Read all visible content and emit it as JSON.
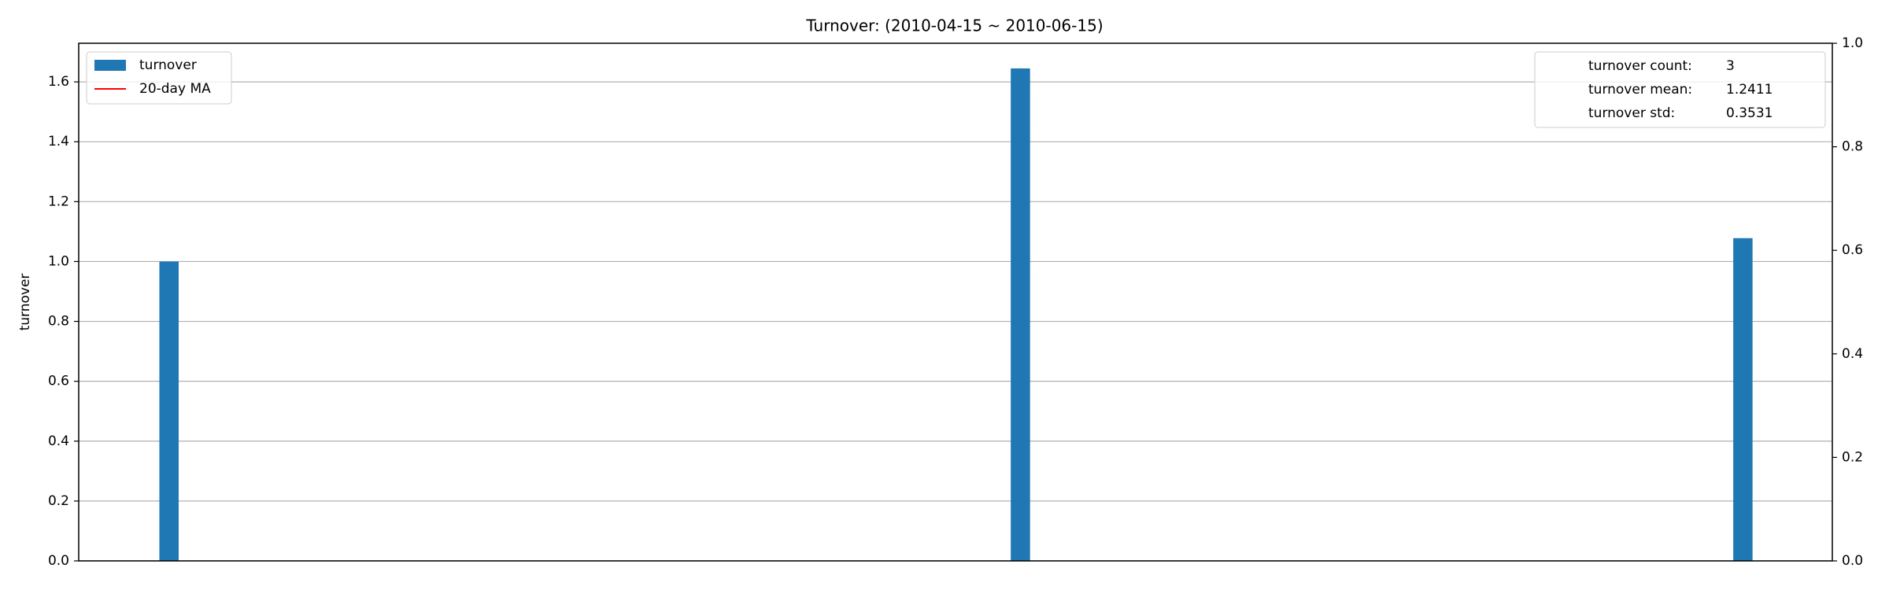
{
  "chart_data": {
    "type": "bar",
    "title": "Turnover: (2010-04-15 ~ 2010-06-15)",
    "y_label": "turnover",
    "categories": [
      null,
      null,
      null
    ],
    "series": [
      {
        "name": "turnover",
        "color": "#1f77b4",
        "values": [
          1.0,
          1.645,
          1.078
        ]
      },
      {
        "name": "20-day MA",
        "color": "#ff0000",
        "values": [
          null,
          null,
          null
        ]
      }
    ],
    "ylim": [
      0,
      1.729
    ],
    "yticks": [
      {
        "value": 0,
        "label": "0.0"
      },
      {
        "value": 0.2,
        "label": "0.2"
      },
      {
        "value": 0.4,
        "label": "0.4"
      },
      {
        "value": 0.6,
        "label": "0.6"
      },
      {
        "value": 0.8,
        "label": "0.8"
      },
      {
        "value": 1.0,
        "label": "1.0"
      },
      {
        "value": 1.2,
        "label": "1.2"
      },
      {
        "value": 1.4,
        "label": "1.4"
      },
      {
        "value": 1.6,
        "label": "1.6"
      }
    ],
    "y2lim": [
      0,
      1
    ],
    "y2ticks": [
      {
        "value": 0,
        "label": "0.0"
      },
      {
        "value": 0.2,
        "label": "0.2"
      },
      {
        "value": 0.4,
        "label": "0.4"
      },
      {
        "value": 0.6,
        "label": "0.6"
      },
      {
        "value": 0.8,
        "label": "0.8"
      },
      {
        "value": 1.0,
        "label": "1.0"
      }
    ],
    "grid": true,
    "legend": "upper left",
    "stats": [
      {
        "label": "turnover count:",
        "value": 3
      },
      {
        "label": "turnover mean:",
        "value": 1.2411
      },
      {
        "label": "turnover std:",
        "value": 0.3531
      }
    ]
  }
}
